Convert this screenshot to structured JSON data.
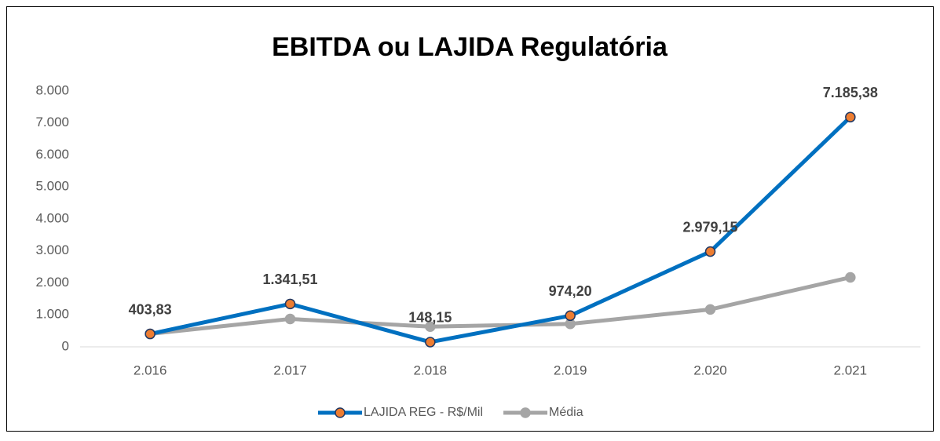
{
  "chart_data": {
    "type": "line",
    "title": "EBITDA ou LAJIDA Regulatória",
    "categories": [
      "2.016",
      "2.017",
      "2.018",
      "2.019",
      "2.020",
      "2.021"
    ],
    "series": [
      {
        "name": "LAJIDA REG - R$/Mil",
        "color": "#0070c0",
        "marker_color": "#ed7d31",
        "values": [
          403.83,
          1341.51,
          148.15,
          974.2,
          2979.15,
          7185.38
        ],
        "value_labels": [
          "403,83",
          "1.341,51",
          "148,15",
          "974,20",
          "2.979,15",
          "7.185,38"
        ]
      },
      {
        "name": "Média",
        "color": "#a5a5a5",
        "marker_color": "#a5a5a5",
        "values": [
          403.83,
          872.67,
          631.16,
          716.92,
          1169.37,
          2172.04
        ]
      }
    ],
    "ylim": [
      0,
      8000
    ],
    "yticks": [
      0,
      {
        "value": 1000,
        "label": "1.000"
      },
      {
        "value": 2000,
        "label": "2.000"
      },
      {
        "value": 3000,
        "label": "3.000"
      },
      {
        "value": 4000,
        "label": "4.000"
      },
      {
        "value": 5000,
        "label": "5.000"
      },
      {
        "value": 6000,
        "label": "6.000"
      },
      {
        "value": 7000,
        "label": "7.000"
      },
      {
        "value": 8000,
        "label": "8.000"
      }
    ],
    "grid": false,
    "legend": "bottom"
  }
}
